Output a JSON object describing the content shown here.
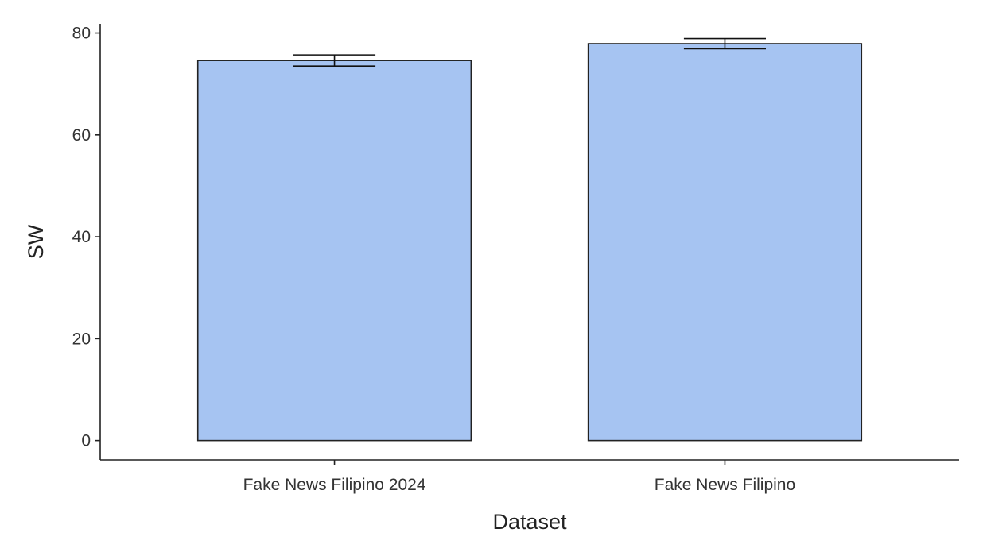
{
  "chart_data": {
    "type": "bar",
    "xlabel": "Dataset",
    "ylabel": "SW",
    "categories": [
      "Fake News Filipino 2024",
      "Fake News Filipino"
    ],
    "values": [
      74.6,
      77.9
    ],
    "error_low": [
      73.5,
      76.9
    ],
    "error_high": [
      75.7,
      78.9
    ],
    "ylim": [
      -3.8,
      81.8
    ],
    "yticks": [
      0,
      20,
      40,
      60,
      80
    ],
    "ytick_labels": [
      "0",
      "20",
      "40",
      "60",
      "80"
    ],
    "grid": false,
    "legend": "none",
    "bar_color": "#a6c4f2",
    "bar_edge_color": "#222222"
  }
}
